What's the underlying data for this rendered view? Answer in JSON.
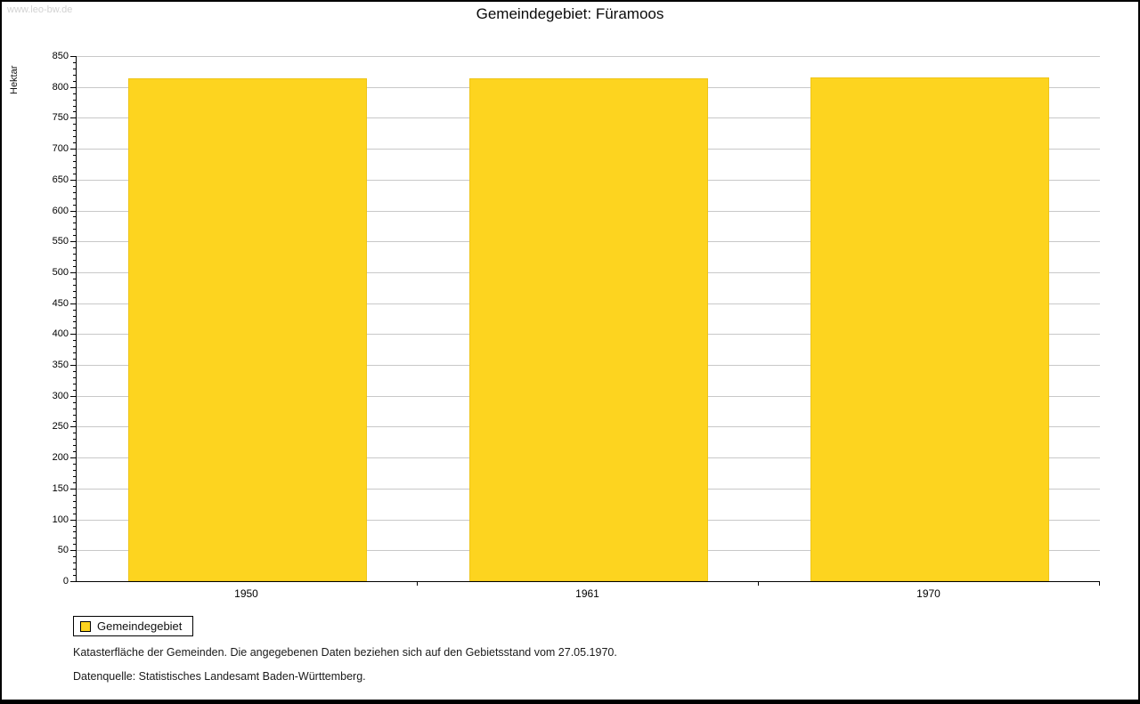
{
  "page": {
    "watermark": "www.leo-bw.de"
  },
  "chart_data": {
    "type": "bar",
    "title": "Gemeindegebiet: Füramoos",
    "categories": [
      "1950",
      "1961",
      "1970"
    ],
    "values": [
      814,
      814,
      816
    ],
    "xlabel": "",
    "ylabel": "Hektar",
    "ylim": [
      0,
      850
    ],
    "y_major_step": 50,
    "y_minor_step": 10,
    "grid": true,
    "grid_color": "#c8c8c8",
    "bar_color": "#fdd41f",
    "bar_border_color": "#eec51a",
    "legend": [
      {
        "label": "Gemeindegebiet",
        "color": "#fdd41f"
      }
    ],
    "legend_position": "bottom-left"
  },
  "footer": {
    "note1": "Katasterfläche der Gemeinden. Die angegebenen Daten beziehen sich auf den Gebietsstand vom 27.05.1970.",
    "note2": "Datenquelle: Statistisches Landesamt Baden-Württemberg."
  }
}
